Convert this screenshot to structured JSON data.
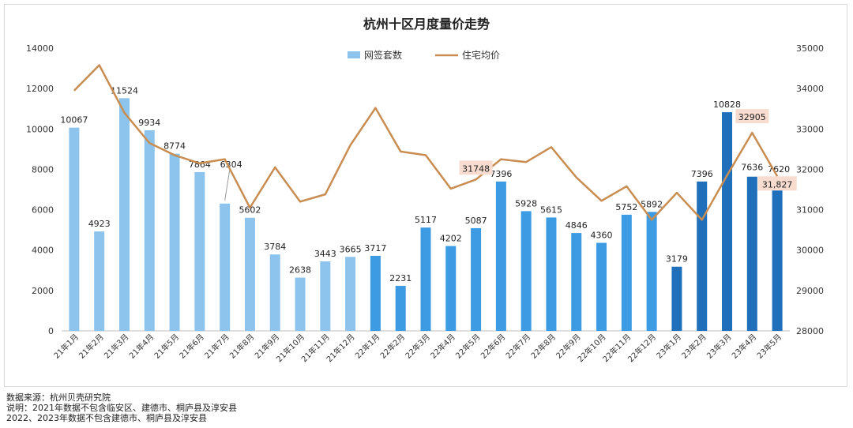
{
  "chart_data": {
    "type": "bar+line",
    "title": "杭州十区月度量价走势",
    "legend_position": "top-center",
    "categories": [
      "21年1月",
      "21年2月",
      "21年3月",
      "21年4月",
      "21年5月",
      "21年6月",
      "21年7月",
      "21年8月",
      "21年9月",
      "21年10月",
      "21年11月",
      "21年12月",
      "22年1月",
      "22年2月",
      "22年3月",
      "22年4月",
      "22年5月",
      "22年6月",
      "22年7月",
      "22年8月",
      "22年9月",
      "22年10月",
      "22年11月",
      "22年12月",
      "23年1月",
      "23年2月",
      "23年3月",
      "23年4月",
      "23年5月"
    ],
    "bar_series": {
      "name": "网签套数",
      "axis": "left",
      "values": [
        10067,
        4923,
        11524,
        9934,
        8774,
        7864,
        6304,
        5602,
        3784,
        2638,
        3443,
        3665,
        3717,
        2231,
        5117,
        4202,
        5087,
        7396,
        5928,
        5615,
        4846,
        4360,
        5752,
        5892,
        3179,
        7396,
        10828,
        7636,
        7620
      ],
      "labels": [
        "10067",
        "4923",
        "11524",
        "9934",
        "8774",
        "7864",
        "6304",
        "5602",
        "3784",
        "2638",
        "3443",
        "3665",
        "3717",
        "2231",
        "5117",
        "4202",
        "5087",
        "7396",
        "5928",
        "5615",
        "4846",
        "4360",
        "5752",
        "5892",
        "3179",
        "7396",
        "10828",
        "7636",
        "7620"
      ],
      "colors_by_year": {
        "2021": "#8cc4ee",
        "2022": "#3d9be4",
        "2023": "#1f6fba"
      },
      "legend_color": "#8cc4ee"
    },
    "line_series": {
      "name": "住宅均价",
      "axis": "right",
      "color": "#c98d52",
      "values": [
        33950,
        34580,
        33400,
        32650,
        32350,
        32150,
        32250,
        31050,
        32050,
        31200,
        31380,
        32600,
        33520,
        32440,
        32350,
        31520,
        31748,
        32250,
        32180,
        32550,
        31800,
        31220,
        31580,
        30750,
        31420,
        30750,
        31850,
        32905,
        31827
      ],
      "highlighted_labels": [
        {
          "index": 16,
          "text": "31748"
        },
        {
          "index": 27,
          "text": "32905"
        },
        {
          "index": 28,
          "text": "31,827"
        }
      ]
    },
    "y_left": {
      "min": 0,
      "max": 14000,
      "step": 2000,
      "ticks": [
        "0",
        "2000",
        "4000",
        "6000",
        "8000",
        "10000",
        "12000",
        "14000"
      ]
    },
    "y_right": {
      "min": 28000,
      "max": 35000,
      "step": 1000,
      "ticks": [
        "28000",
        "29000",
        "30000",
        "31000",
        "32000",
        "33000",
        "34000",
        "35000"
      ]
    },
    "grid": false
  },
  "notes": {
    "source": "数据来源：杭州贝壳研究院",
    "note1": "说明：2021年数据不包含临安区、建德市、桐庐县及淳安县",
    "note2": "2022、2023年数据不包含建德市、桐庐县及淳安县"
  }
}
